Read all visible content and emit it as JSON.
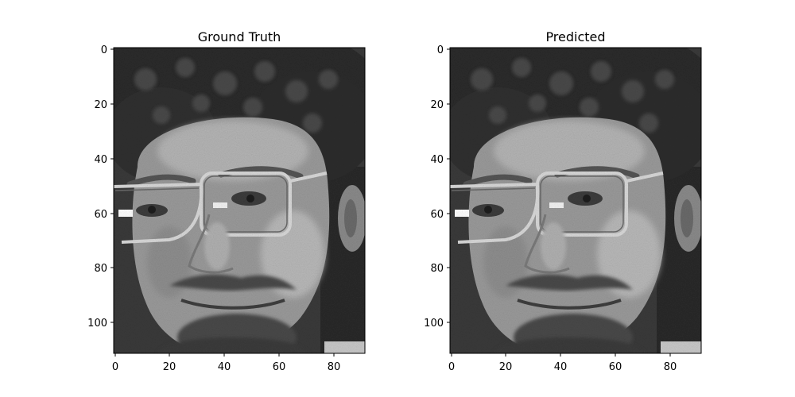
{
  "panels": [
    {
      "title": "Ground Truth",
      "image": "grayscale face photograph (man with curly hair, glasses, goatee)",
      "x_ticks": [
        "0",
        "20",
        "40",
        "60",
        "80"
      ],
      "y_ticks": [
        "0",
        "20",
        "40",
        "60",
        "80",
        "100"
      ]
    },
    {
      "title": "Predicted",
      "image": "grayscale face photograph (reconstruction of the same face)",
      "x_ticks": [
        "0",
        "20",
        "40",
        "60",
        "80"
      ],
      "y_ticks": [
        "0",
        "20",
        "40",
        "60",
        "80",
        "100"
      ]
    }
  ],
  "image_extent": {
    "width": 92,
    "height": 112
  },
  "colors": {
    "background": "#ffffff",
    "frame": "#000000"
  }
}
